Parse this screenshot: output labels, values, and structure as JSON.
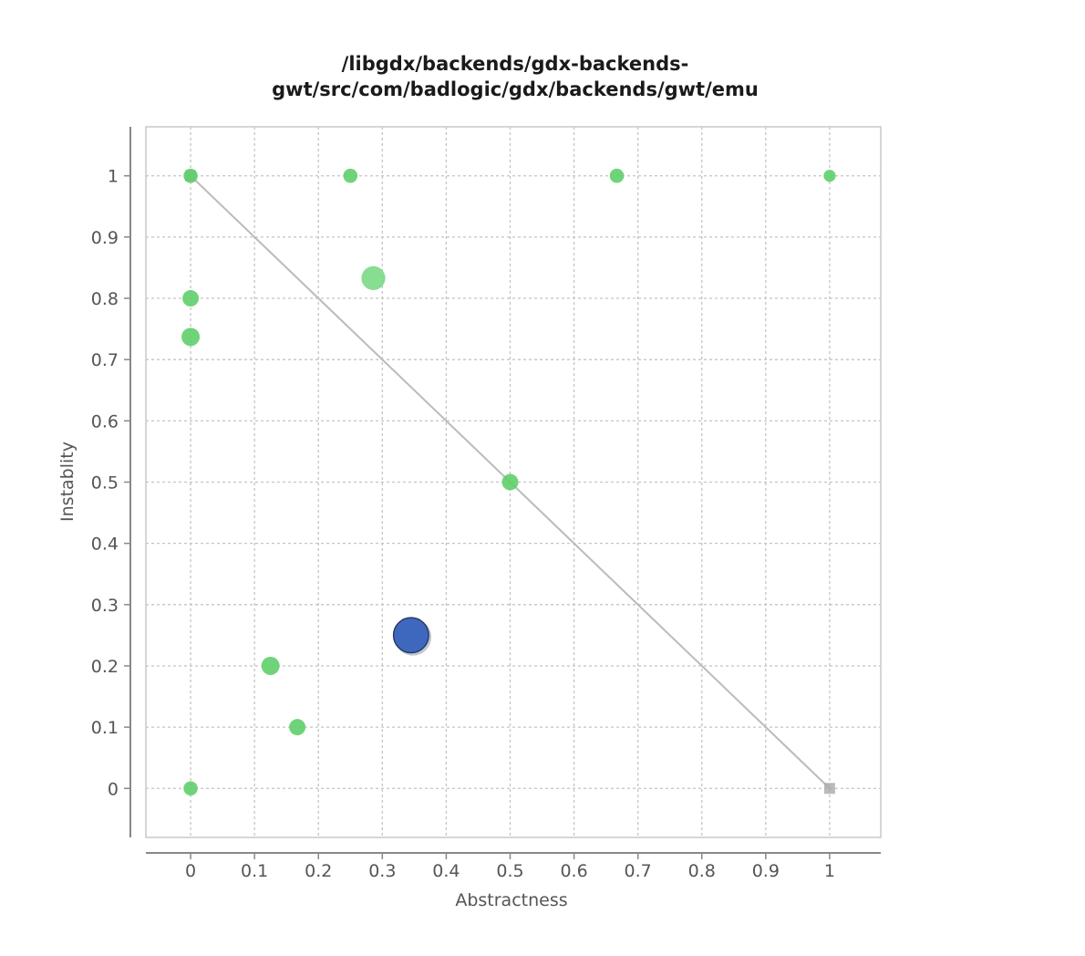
{
  "chart_data": {
    "type": "scatter",
    "title": "/libgdx/backends/gdx-backends-gwt/src/com/badlogic/gdx/backends/gwt/emu",
    "title_lines": [
      "/libgdx/backends/gdx-backends-",
      "gwt/src/com/badlogic/gdx/backends/gwt/emu"
    ],
    "xlabel": "Abstractness",
    "ylabel": "Instablity",
    "xlim": [
      -0.07,
      1.08
    ],
    "ylim": [
      -0.08,
      1.08
    ],
    "x_ticks": [
      "0",
      "0.1",
      "0.2",
      "0.3",
      "0.4",
      "0.5",
      "0.6",
      "0.7",
      "0.8",
      "0.9",
      "1"
    ],
    "y_ticks": [
      "0",
      "0.1",
      "0.2",
      "0.3",
      "0.4",
      "0.5",
      "0.6",
      "0.7",
      "0.8",
      "0.9",
      "1"
    ],
    "grid": true,
    "main_sequence_line": {
      "from": [
        0,
        1
      ],
      "to": [
        1,
        0
      ],
      "color": "#bbbbbb"
    },
    "endpoint_markers": [
      {
        "x": 0,
        "y": 1,
        "color": "#aaaaaa"
      },
      {
        "x": 1,
        "y": 0,
        "color": "#aaaaaa"
      }
    ],
    "points": [
      {
        "x": 0,
        "y": 1,
        "size": 1,
        "color": "#5fcf6a"
      },
      {
        "x": 0.25,
        "y": 1,
        "size": 1,
        "color": "#5fcf6a"
      },
      {
        "x": 0.667,
        "y": 1,
        "size": 1,
        "color": "#5fcf6a"
      },
      {
        "x": 1,
        "y": 1,
        "size": 0.6,
        "color": "#5fcf6a"
      },
      {
        "x": 0.286,
        "y": 0.833,
        "size": 4,
        "color": "#7ad985"
      },
      {
        "x": 0,
        "y": 0.8,
        "size": 1.5,
        "color": "#5fcf6a"
      },
      {
        "x": 0,
        "y": 0.737,
        "size": 2,
        "color": "#5fcf6a"
      },
      {
        "x": 0.5,
        "y": 0.5,
        "size": 1.5,
        "color": "#5fcf6a"
      },
      {
        "x": 0.345,
        "y": 0.25,
        "size": 10,
        "color": "#3e68be"
      },
      {
        "x": 0.125,
        "y": 0.2,
        "size": 2,
        "color": "#5fcf6a"
      },
      {
        "x": 0.167,
        "y": 0.1,
        "size": 1.5,
        "color": "#5fcf6a"
      },
      {
        "x": 0,
        "y": 0,
        "size": 1,
        "color": "#5fcf6a"
      }
    ]
  }
}
